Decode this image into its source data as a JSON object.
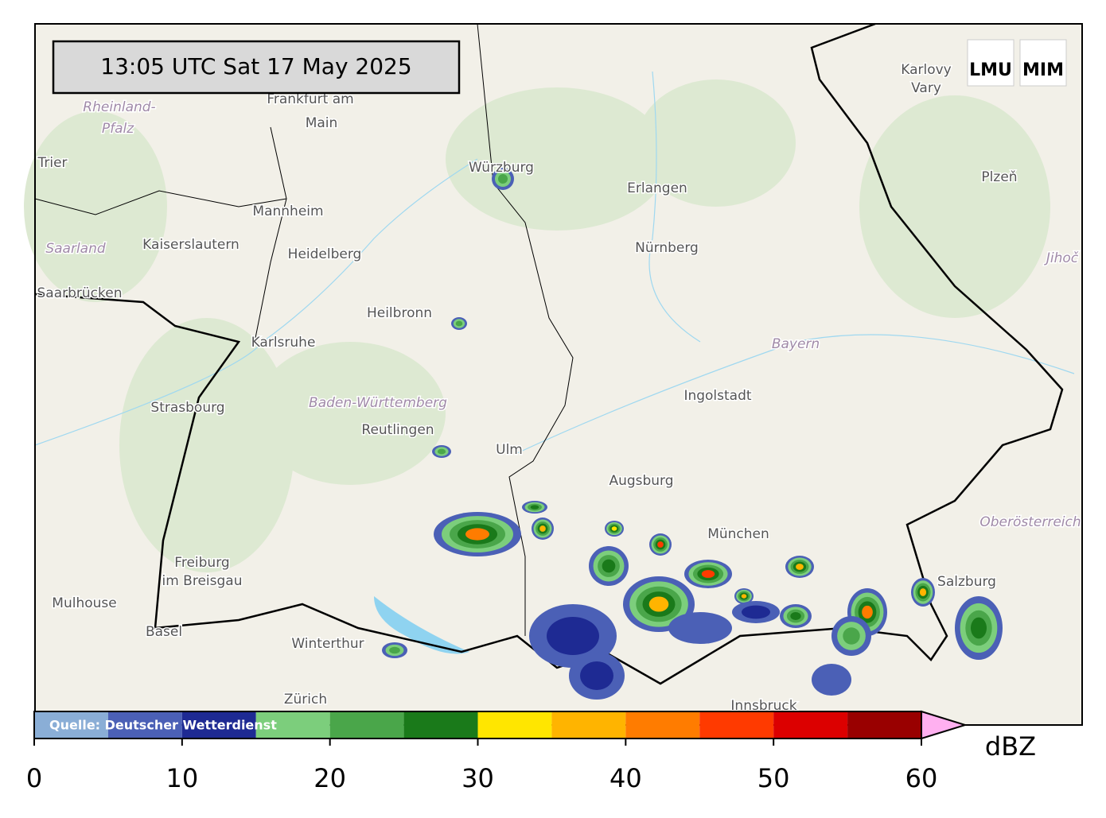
{
  "header": {
    "timestamp": "13:05 UTC  Sat 17 May 2025"
  },
  "logo": {
    "left": "LMU",
    "right": "MIM"
  },
  "places": [
    {
      "label": "Frankfurt am"
    },
    {
      "label": "Main"
    },
    {
      "label": "Rheinland-"
    },
    {
      "label": "Pfalz"
    },
    {
      "label": "Trier"
    },
    {
      "label": "Mannheim"
    },
    {
      "label": "Kaiserslautern"
    },
    {
      "label": "Saarland"
    },
    {
      "label": "Heidelberg"
    },
    {
      "label": "Saarbrücken"
    },
    {
      "label": "Heilbronn"
    },
    {
      "label": "Karlsruhe"
    },
    {
      "label": "Strasbourg"
    },
    {
      "label": "Baden-Württemberg"
    },
    {
      "label": "Reutlingen"
    },
    {
      "label": "Ulm"
    },
    {
      "label": "Freiburg"
    },
    {
      "label": "im Breisgau"
    },
    {
      "label": "Mulhouse"
    },
    {
      "label": "Basel"
    },
    {
      "label": "Winterthur"
    },
    {
      "label": "Zürich"
    },
    {
      "label": "Würzburg"
    },
    {
      "label": "Erlangen"
    },
    {
      "label": "Nürnberg"
    },
    {
      "label": "Bayern"
    },
    {
      "label": "Ingolstadt"
    },
    {
      "label": "Augsburg"
    },
    {
      "label": "München"
    },
    {
      "label": "Karlovy"
    },
    {
      "label": "Vary"
    },
    {
      "label": "Plzeň"
    },
    {
      "label": "Jihoč"
    },
    {
      "label": "Oberösterreich"
    },
    {
      "label": "Salzburg"
    },
    {
      "label": "Innsbruck"
    }
  ],
  "colorbar": {
    "source": "Quelle: Deutscher Wetterdienst",
    "unit": "dBZ",
    "xlim": [
      0,
      60
    ],
    "bounds": [
      0,
      5,
      10,
      15,
      20,
      25,
      30,
      35,
      40,
      45,
      50,
      55,
      60
    ],
    "colors": [
      "#8aaed6",
      "#4b60b6",
      "#1e2a93",
      "#7cce7c",
      "#4aa64a",
      "#1a7a1a",
      "#ffe600",
      "#ffb400",
      "#ff7c00",
      "#ff3a00",
      "#dc0000",
      "#990000"
    ],
    "extend_color": "#ffb0f0",
    "ticks": [
      0,
      10,
      20,
      30,
      40,
      50,
      60
    ]
  }
}
